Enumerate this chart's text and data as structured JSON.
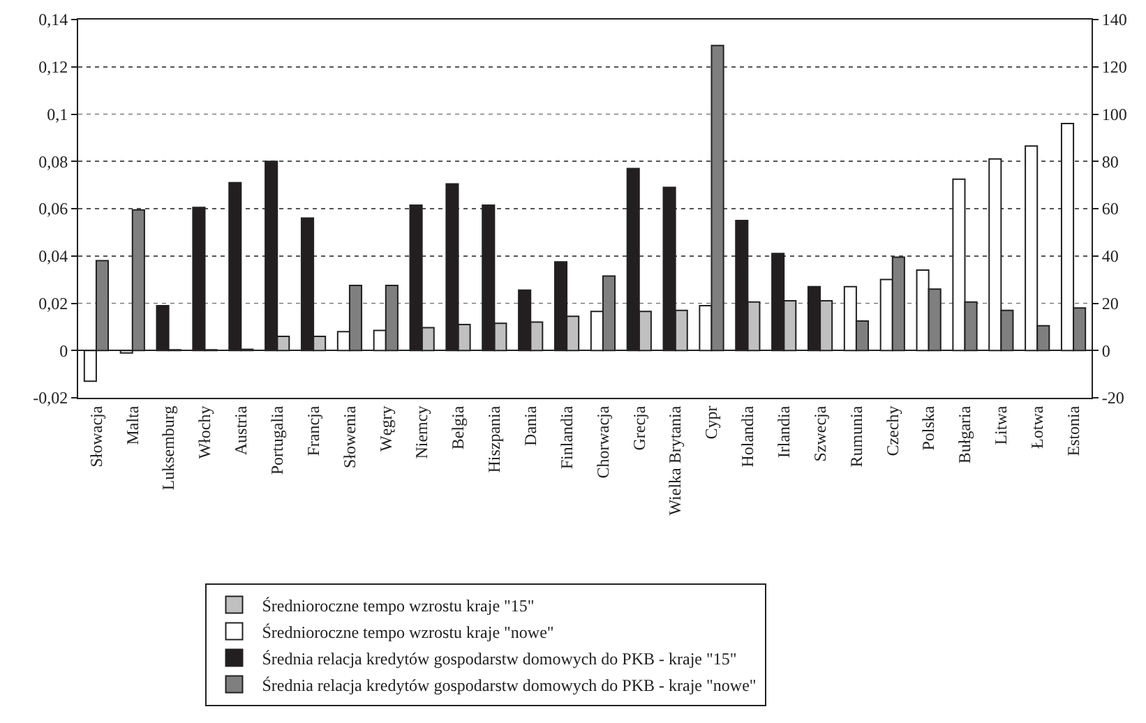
{
  "chart_data": {
    "type": "bar",
    "categories": [
      "Słowacja",
      "Malta",
      "Luksemburg",
      "Włochy",
      "Austria",
      "Portugalia",
      "Francja",
      "Słowenia",
      "Węgry",
      "Niemcy",
      "Belgia",
      "Hiszpania",
      "Dania",
      "Finlandia",
      "Chorwacja",
      "Grecja",
      "Wielka Brytania",
      "Cypr",
      "Holandia",
      "Irlandia",
      "Szwecja",
      "Rumunia",
      "Czechy",
      "Polska",
      "Bułgaria",
      "Litwa",
      "Łotwa",
      "Estonia"
    ],
    "series": [
      {
        "name": "Średnioroczne tempo wzrostu kraje \"15\"",
        "color": "#c0c0c0",
        "values": [
          null,
          null,
          0.0003,
          0.0003,
          0.0005,
          0.006,
          0.006,
          null,
          null,
          0.0097,
          0.011,
          0.0115,
          0.012,
          0.0145,
          null,
          0.0165,
          0.017,
          null,
          0.0205,
          0.021,
          0.021,
          null,
          null,
          null,
          null,
          null,
          null,
          null
        ]
      },
      {
        "name": "Średnioroczne tempo wzrostu kraje \"nowe\"",
        "color": "#ffffff",
        "values": [
          -0.013,
          -0.001,
          null,
          null,
          null,
          null,
          null,
          0.008,
          0.0085,
          null,
          null,
          null,
          null,
          null,
          0.0165,
          null,
          null,
          0.019,
          null,
          null,
          null,
          0.027,
          0.03,
          0.034,
          0.0725,
          0.081,
          0.0865,
          0.096
        ]
      },
      {
        "name": "Średnia relacja kredytów gospodarstw domowych do PKB - kraje \"15\"",
        "color": "#231f20",
        "axis": "y2",
        "values": [
          null,
          null,
          19,
          60.5,
          71,
          80,
          56,
          null,
          null,
          61.5,
          70.5,
          61.5,
          25.5,
          37.5,
          null,
          77,
          69,
          null,
          55,
          41,
          27,
          null,
          null,
          null,
          null,
          null,
          null,
          null
        ]
      },
      {
        "name": "Średnia relacja kredytów gospodarstw domowych do PKB - kraje \"nowe\"",
        "color": "#7f7f7f",
        "axis": "y2",
        "values": [
          38,
          59.5,
          null,
          null,
          null,
          null,
          null,
          27.5,
          27.5,
          null,
          null,
          null,
          null,
          null,
          31.5,
          null,
          null,
          129,
          null,
          null,
          null,
          12.5,
          39.5,
          26,
          20.5,
          17,
          10.5,
          18
        ]
      }
    ],
    "ylim": [
      -0.02,
      0.14
    ],
    "yticks": [
      {
        "value": -0.02,
        "label": "-0,02"
      },
      0,
      {
        "value": 0.02,
        "label": "0,02"
      },
      {
        "value": 0.04,
        "label": "0,04"
      },
      {
        "value": 0.06,
        "label": "0,06"
      },
      {
        "value": 0.08,
        "label": "0,08"
      },
      {
        "value": 0.1,
        "label": "0,1"
      },
      {
        "value": 0.12,
        "label": "0,12"
      },
      {
        "value": 0.14,
        "label": "0,14"
      }
    ],
    "y2lim": [
      -20,
      140
    ],
    "y2ticks": [
      -20,
      0,
      20,
      40,
      60,
      80,
      100,
      120,
      140
    ],
    "grid": "y",
    "legend": "bottom"
  }
}
